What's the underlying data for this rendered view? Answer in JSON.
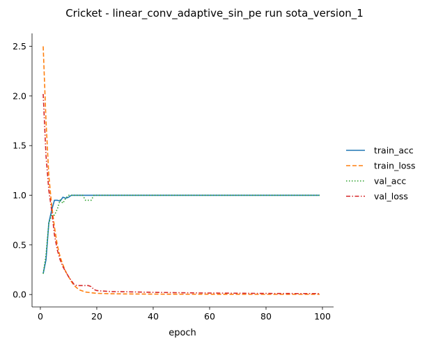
{
  "chart_data": {
    "type": "line",
    "title": "Cricket - linear_conv_adaptive_sin_pe run sota_version_1",
    "xlabel": "epoch",
    "ylabel": "",
    "xlim": [
      -2.95,
      103.95
    ],
    "ylim": [
      -0.125,
      2.63
    ],
    "xticks": [
      0,
      20,
      40,
      60,
      80,
      100
    ],
    "yticks": [
      0.0,
      0.5,
      1.0,
      1.5,
      2.0,
      2.5
    ],
    "xtick_labels": [
      "0",
      "20",
      "40",
      "60",
      "80",
      "100"
    ],
    "ytick_labels": [
      "0.0",
      "0.5",
      "1.0",
      "1.5",
      "2.0",
      "2.5"
    ],
    "legend_position": "right",
    "grid": false,
    "series": [
      {
        "name": "train_acc",
        "color": "#1f77b4",
        "dash": "solid",
        "x": [
          1,
          2,
          3,
          4,
          5,
          6,
          7,
          8,
          9,
          10,
          11,
          12,
          13,
          14,
          15,
          20,
          30,
          40,
          50,
          60,
          70,
          80,
          90,
          99
        ],
        "y": [
          0.21,
          0.35,
          0.72,
          0.85,
          0.95,
          0.95,
          0.94,
          0.98,
          0.97,
          0.98,
          1.0,
          1.0,
          1.0,
          1.0,
          1.0,
          1.0,
          1.0,
          1.0,
          1.0,
          1.0,
          1.0,
          1.0,
          1.0,
          1.0
        ]
      },
      {
        "name": "train_loss",
        "color": "#ff7f0e",
        "dash": "dashed",
        "x": [
          1,
          2,
          3,
          4,
          5,
          6,
          7,
          8,
          9,
          10,
          11,
          12,
          13,
          14,
          15,
          16,
          18,
          20,
          25,
          30,
          40,
          50,
          60,
          70,
          80,
          90,
          99
        ],
        "y": [
          2.5,
          1.75,
          1.2,
          0.9,
          0.68,
          0.5,
          0.38,
          0.3,
          0.23,
          0.18,
          0.13,
          0.09,
          0.065,
          0.045,
          0.035,
          0.025,
          0.018,
          0.012,
          0.008,
          0.006,
          0.004,
          0.003,
          0.003,
          0.002,
          0.002,
          0.002,
          0.002
        ]
      },
      {
        "name": "val_acc",
        "color": "#2ca02c",
        "dash": "dotted",
        "x": [
          1,
          2,
          3,
          4,
          5,
          6,
          7,
          8,
          9,
          10,
          11,
          12,
          13,
          14,
          15,
          16,
          17,
          18,
          19,
          20,
          30,
          40,
          50,
          60,
          70,
          80,
          90,
          99
        ],
        "y": [
          0.21,
          0.4,
          0.72,
          0.8,
          0.8,
          0.86,
          0.95,
          0.92,
          0.97,
          1.0,
          1.0,
          1.0,
          1.0,
          1.0,
          1.0,
          0.95,
          0.95,
          0.95,
          1.0,
          1.0,
          1.0,
          1.0,
          1.0,
          1.0,
          1.0,
          1.0,
          1.0,
          1.0
        ]
      },
      {
        "name": "val_loss",
        "color": "#d62728",
        "dash": "dashdot",
        "x": [
          1,
          2,
          3,
          4,
          5,
          6,
          7,
          8,
          9,
          10,
          11,
          12,
          13,
          14,
          15,
          16,
          17,
          18,
          19,
          20,
          22,
          25,
          30,
          40,
          50,
          60,
          70,
          80,
          90,
          99
        ],
        "y": [
          2.02,
          1.4,
          1.05,
          0.85,
          0.6,
          0.45,
          0.35,
          0.28,
          0.23,
          0.18,
          0.14,
          0.1,
          0.09,
          0.09,
          0.09,
          0.09,
          0.09,
          0.08,
          0.05,
          0.04,
          0.035,
          0.03,
          0.028,
          0.022,
          0.018,
          0.015,
          0.013,
          0.011,
          0.01,
          0.01
        ]
      }
    ]
  }
}
